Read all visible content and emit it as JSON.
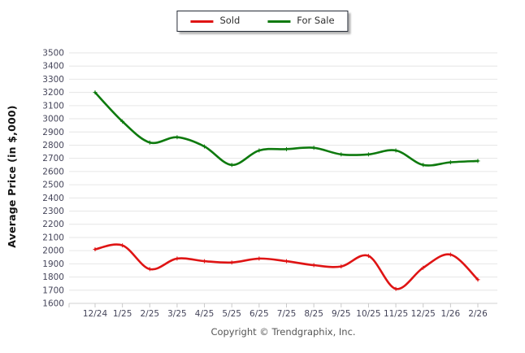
{
  "legend": {
    "items": [
      {
        "label": "Sold",
        "color": "#df1414"
      },
      {
        "label": "For Sale",
        "color": "#0e7a0e"
      }
    ]
  },
  "y_axis_title": "Average Price (in $,000)",
  "footer_text": "Copyright © Trendgraphix, Inc.",
  "colors": {
    "grid": "#e6e6e6",
    "axis_line": "#d2d2d2",
    "tick": "#c9c9c9",
    "tick_label": "#45455a",
    "sold_line": "#df1414",
    "for_sale_line": "#0e7a0e"
  },
  "chart_data": {
    "type": "line",
    "title": "",
    "xlabel": "",
    "ylabel": "Average Price (in $,000)",
    "ylim": [
      1600,
      3500
    ],
    "ytick_step": 100,
    "grid": true,
    "legend_position": "top-center",
    "categories": [
      "12/24",
      "1/25",
      "2/25",
      "3/25",
      "4/25",
      "5/25",
      "6/25",
      "7/25",
      "8/25",
      "9/25",
      "10/25",
      "11/25",
      "12/25",
      "1/26",
      "2/26"
    ],
    "series": [
      {
        "name": "Sold",
        "color": "#df1414",
        "values": [
          2010,
          2040,
          1860,
          1940,
          1920,
          1910,
          1940,
          1920,
          1890,
          1880,
          1960,
          1710,
          1870,
          1970,
          1780
        ]
      },
      {
        "name": "For Sale",
        "color": "#0e7a0e",
        "values": [
          3200,
          2980,
          2820,
          2860,
          2790,
          2650,
          2760,
          2770,
          2780,
          2730,
          2730,
          2760,
          2650,
          2670,
          2680
        ]
      }
    ]
  }
}
